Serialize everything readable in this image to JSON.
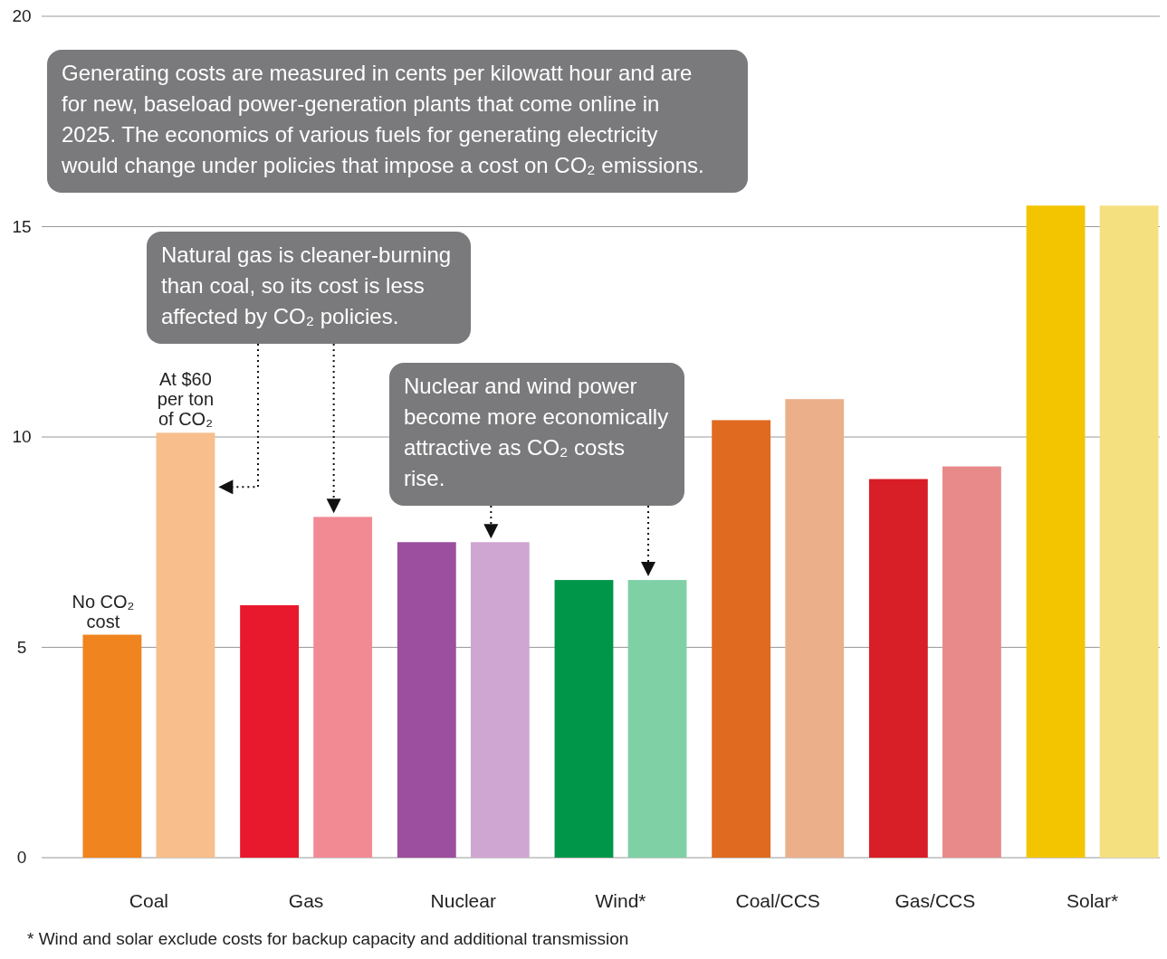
{
  "chart_data": {
    "type": "bar",
    "categories": [
      "Coal",
      "Gas",
      "Nuclear",
      "Wind*",
      "Coal/CCS",
      "Gas/CCS",
      "Solar*"
    ],
    "series": [
      {
        "name": "No CO₂ cost",
        "colors": [
          "#f0841e",
          "#e8192c",
          "#9b4f9e",
          "#00964a",
          "#df6a20",
          "#d81e26",
          "#f2c500"
        ],
        "values": [
          5.3,
          6.0,
          7.5,
          6.6,
          10.4,
          9.0,
          15.5
        ]
      },
      {
        "name": "At $60 per ton of CO₂",
        "colors": [
          "#f8be8c",
          "#f28a94",
          "#cfa6d2",
          "#80d0a6",
          "#ebb08a",
          "#e88a8a",
          "#f5e080"
        ],
        "values": [
          10.1,
          8.1,
          7.5,
          6.6,
          10.9,
          9.3,
          15.5
        ]
      }
    ],
    "ylim": [
      0,
      20
    ],
    "yticks": [
      0,
      5,
      10,
      15,
      20
    ],
    "grid": "y",
    "annotations": [
      "Generating costs are measured in cents per kilowatt hour and are for new, baseload power-generation plants that come online in 2025. The economics of various fuels for generating electricity would change under policies that impose a cost on CO₂ emissions.",
      "Natural gas is cleaner-burning than coal, so its cost is less affected by CO₂ policies.",
      "Nuclear and wind power become more economically attractive as CO₂ costs rise.",
      "* Wind and solar exclude costs for backup capacity and additional transmission"
    ]
  }
}
